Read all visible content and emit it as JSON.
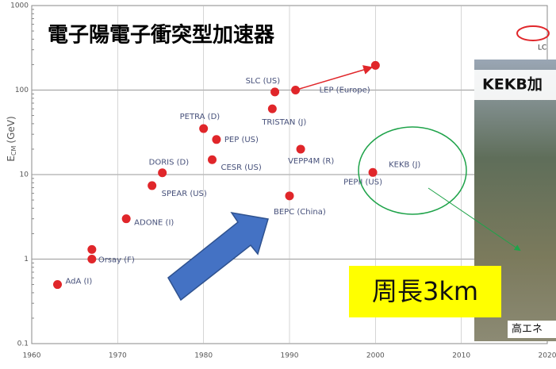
{
  "chart_data": {
    "type": "scatter",
    "title": "電子陽電子衝突型加速器",
    "y_label": {
      "main": "E",
      "sub": "CM",
      "unit": "(GeV)"
    },
    "x": [
      1963,
      1967,
      1967,
      1971,
      1974,
      1975.2,
      1981,
      1980,
      1981.5,
      1988,
      1988.3,
      1990.7,
      2000,
      1991.3,
      1990,
      1999.7
    ],
    "values": [
      0.5,
      1.3,
      1.0,
      3.0,
      7.4,
      10.5,
      15,
      35,
      26,
      60,
      95,
      100,
      196,
      20,
      5.6,
      10.6
    ],
    "labels": [
      "AdA (I)",
      null,
      "Orsay (F)",
      "ADONE (I)",
      "SPEAR (US)",
      "DORIS (D)",
      "CESR (US)",
      "PETRA (D)",
      "PEP (US)",
      "TRISTAN (J)",
      "SLC (US)",
      "LEP (Europe)",
      null,
      "VEPP4M (R)",
      "BEPC (China)",
      "KEKB (J)"
    ],
    "extra_label": "PEPII (US)",
    "color": "#e0262a",
    "log_y": true,
    "grid": true,
    "xlim": [
      1960,
      2020
    ],
    "xticks": [
      1960,
      1970,
      1980,
      1990,
      2000,
      2010,
      2020
    ],
    "ylim": [
      0.1,
      1000
    ],
    "yticks": [
      0.1,
      1,
      10,
      100,
      1000
    ]
  },
  "photo": {
    "caption": "KEKB加",
    "circumference": "周長3km",
    "credit": "高エネ",
    "lc_label": "LC"
  }
}
